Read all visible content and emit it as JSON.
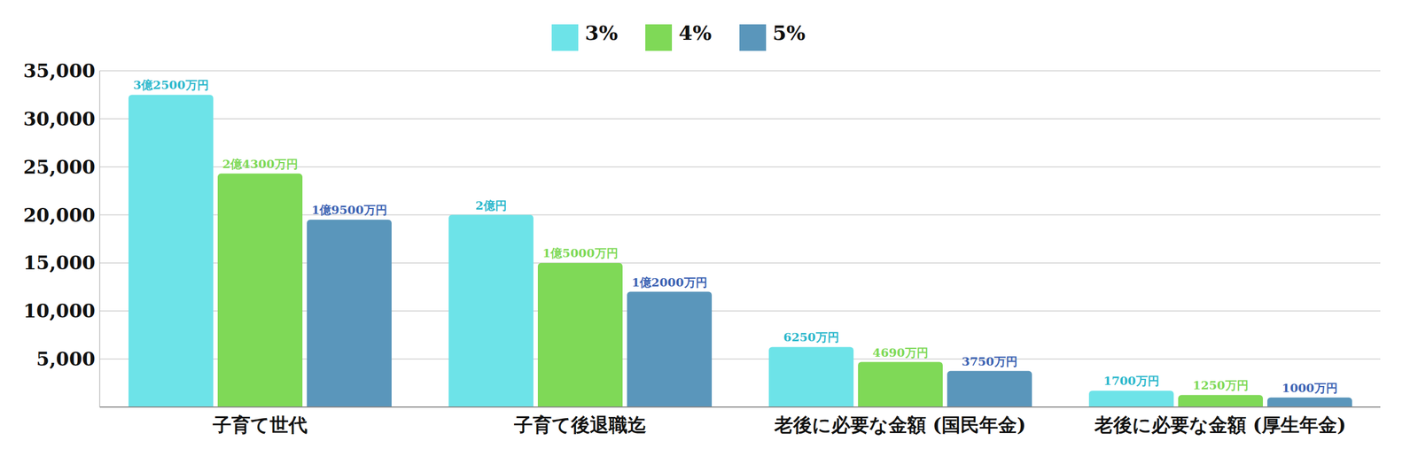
{
  "chart_data": {
    "type": "bar",
    "categories": [
      "子育て世代",
      "子育て後退職迄",
      "老後に必要な金額 (国民年金)",
      "老後に必要な金額 (厚生年金)"
    ],
    "series": [
      {
        "name": "3%",
        "color": "#6de3e8",
        "values": [
          32500,
          20000,
          6250,
          1700
        ],
        "value_labels": [
          "3億2500万円",
          "2億円",
          "6250万円",
          "1700万円"
        ]
      },
      {
        "name": "4%",
        "color": "#7fd957",
        "values": [
          24300,
          15000,
          4690,
          1250
        ],
        "value_labels": [
          "2億4300万円",
          "1億5000万円",
          "4690万円",
          "1250万円"
        ]
      },
      {
        "name": "5%",
        "color": "#5a96bb",
        "values": [
          19500,
          12000,
          3750,
          1000
        ],
        "value_labels": [
          "1億9500万円",
          "1億2000万円",
          "3750万円",
          "1000万円"
        ]
      }
    ],
    "ylim": [
      0,
      35000
    ],
    "yticks": [
      {
        "value": 5000,
        "label": "5,000"
      },
      {
        "value": 10000,
        "label": "10,000"
      },
      {
        "value": 15000,
        "label": "15,000"
      },
      {
        "value": 20000,
        "label": "20,000"
      },
      {
        "value": 25000,
        "label": "25,000"
      },
      {
        "value": 30000,
        "label": "30,000"
      },
      {
        "value": 35000,
        "label": "35,000"
      }
    ],
    "grid": true,
    "legend": "top",
    "data_labels": true
  }
}
